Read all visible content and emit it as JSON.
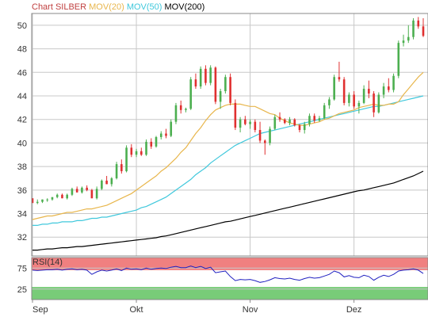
{
  "chart_data": {
    "type": "candlestick",
    "title_parts": [
      {
        "text": "Chart SILBER",
        "color": "#c04040"
      },
      {
        "text": "MOV(20)",
        "color": "#e8b64c"
      },
      {
        "text": "MOV(50)",
        "color": "#40c8dc"
      },
      {
        "text": "MOV(200)",
        "color": "#000000"
      }
    ],
    "y_ticks": [
      32,
      34,
      36,
      38,
      40,
      42,
      44,
      46,
      48,
      50
    ],
    "ylim": [
      30.4,
      51
    ],
    "x_labels": [
      {
        "label": "Sep",
        "index": 0
      },
      {
        "label": "Okt",
        "index": 21
      },
      {
        "label": "Nov",
        "index": 44
      },
      {
        "label": "Dez",
        "index": 65
      }
    ],
    "up_color": "#4caf50",
    "down_color": "#e03030",
    "candles": [
      [
        35.3,
        35.3,
        34.9,
        34.9
      ],
      [
        34.9,
        35.2,
        34.8,
        35.0
      ],
      [
        35.0,
        35.2,
        34.9,
        35.2
      ],
      [
        35.2,
        35.3,
        35.0,
        35.2
      ],
      [
        35.2,
        35.4,
        35.1,
        35.4
      ],
      [
        35.4,
        35.7,
        35.3,
        35.6
      ],
      [
        35.6,
        35.7,
        35.3,
        35.3
      ],
      [
        35.3,
        35.7,
        35.2,
        35.6
      ],
      [
        35.6,
        36.2,
        35.5,
        36.1
      ],
      [
        36.1,
        36.3,
        35.8,
        35.8
      ],
      [
        35.8,
        36.3,
        35.7,
        36.2
      ],
      [
        36.2,
        36.4,
        35.9,
        36.0
      ],
      [
        36.0,
        36.1,
        35.3,
        35.3
      ],
      [
        35.3,
        36.3,
        35.2,
        36.1
      ],
      [
        36.1,
        36.9,
        36.0,
        36.8
      ],
      [
        36.8,
        37.2,
        36.5,
        36.5
      ],
      [
        36.5,
        37.1,
        36.3,
        37.0
      ],
      [
        37.0,
        38.4,
        36.9,
        38.2
      ],
      [
        38.2,
        38.6,
        37.4,
        37.6
      ],
      [
        37.6,
        39.8,
        37.5,
        39.6
      ],
      [
        39.6,
        39.9,
        38.8,
        39.0
      ],
      [
        39.0,
        39.5,
        38.8,
        39.3
      ],
      [
        39.3,
        39.6,
        38.9,
        39.0
      ],
      [
        39.0,
        40.3,
        38.9,
        40.1
      ],
      [
        40.1,
        40.4,
        39.5,
        39.7
      ],
      [
        39.7,
        40.6,
        39.6,
        40.5
      ],
      [
        40.5,
        41.0,
        40.3,
        40.8
      ],
      [
        40.8,
        41.2,
        40.4,
        40.6
      ],
      [
        40.6,
        42.0,
        40.5,
        41.8
      ],
      [
        41.8,
        43.4,
        41.6,
        43.2
      ],
      [
        43.2,
        43.6,
        42.5,
        42.8
      ],
      [
        42.8,
        43.0,
        42.6,
        42.9
      ],
      [
        42.9,
        45.6,
        42.8,
        45.4
      ],
      [
        45.4,
        45.9,
        44.6,
        44.8
      ],
      [
        44.8,
        46.5,
        44.6,
        46.3
      ],
      [
        46.3,
        46.6,
        44.9,
        45.1
      ],
      [
        45.1,
        46.6,
        44.9,
        46.4
      ],
      [
        46.4,
        46.5,
        43.3,
        43.5
      ],
      [
        43.5,
        44.6,
        42.9,
        44.4
      ],
      [
        44.4,
        45.8,
        44.2,
        45.6
      ],
      [
        45.6,
        45.9,
        43.2,
        43.4
      ],
      [
        43.4,
        43.7,
        41.1,
        41.3
      ],
      [
        41.3,
        42.2,
        40.9,
        42.0
      ],
      [
        42.0,
        42.3,
        41.5,
        41.6
      ],
      [
        41.6,
        42.0,
        41.2,
        41.8
      ],
      [
        41.8,
        42.0,
        40.9,
        41.1
      ],
      [
        41.1,
        41.8,
        40.0,
        40.2
      ],
      [
        40.2,
        40.3,
        39.0,
        40.0
      ],
      [
        40.0,
        41.4,
        39.8,
        41.2
      ],
      [
        41.2,
        42.4,
        41.1,
        42.2
      ],
      [
        42.2,
        42.6,
        41.8,
        42.0
      ],
      [
        42.0,
        42.1,
        41.6,
        41.7
      ],
      [
        41.7,
        42.2,
        41.5,
        42.0
      ],
      [
        42.0,
        42.1,
        41.4,
        41.5
      ],
      [
        41.5,
        41.6,
        40.9,
        41.1
      ],
      [
        41.1,
        41.8,
        40.8,
        41.6
      ],
      [
        41.6,
        42.5,
        41.4,
        42.3
      ],
      [
        42.3,
        42.5,
        41.7,
        41.9
      ],
      [
        41.9,
        42.3,
        41.8,
        42.1
      ],
      [
        42.1,
        43.4,
        42.0,
        43.2
      ],
      [
        43.2,
        43.9,
        42.9,
        43.7
      ],
      [
        43.7,
        45.8,
        43.6,
        45.6
      ],
      [
        45.6,
        46.9,
        45.2,
        45.4
      ],
      [
        45.4,
        45.6,
        43.2,
        43.4
      ],
      [
        43.4,
        44.3,
        43.1,
        44.1
      ],
      [
        44.1,
        44.4,
        42.9,
        43.1
      ],
      [
        43.1,
        43.6,
        42.5,
        43.4
      ],
      [
        43.4,
        44.9,
        43.3,
        44.6
      ],
      [
        44.6,
        45.3,
        43.8,
        44.2
      ],
      [
        44.2,
        44.4,
        42.2,
        42.6
      ],
      [
        42.6,
        44.3,
        42.5,
        44.1
      ],
      [
        44.1,
        45.1,
        43.8,
        44.8
      ],
      [
        44.8,
        45.5,
        44.3,
        44.5
      ],
      [
        44.5,
        45.9,
        44.3,
        45.7
      ],
      [
        45.7,
        48.7,
        45.5,
        48.5
      ],
      [
        48.5,
        49.2,
        48.2,
        48.7
      ],
      [
        48.7,
        50.0,
        48.5,
        49.0
      ],
      [
        49.0,
        50.6,
        48.8,
        50.4
      ],
      [
        50.4,
        50.7,
        49.7,
        49.9
      ],
      [
        49.9,
        50.6,
        49.0,
        49.1
      ]
    ],
    "ma20": [
      33.5,
      33.6,
      33.7,
      33.8,
      33.8,
      33.9,
      34.0,
      34.1,
      34.1,
      34.2,
      34.3,
      34.4,
      34.4,
      34.5,
      34.6,
      34.7,
      34.9,
      35.1,
      35.3,
      35.5,
      35.7,
      36.0,
      36.3,
      36.6,
      36.9,
      37.2,
      37.6,
      37.9,
      38.3,
      38.7,
      39.2,
      39.6,
      40.2,
      40.8,
      41.3,
      41.9,
      42.4,
      42.8,
      43.0,
      43.2,
      43.3,
      43.3,
      43.3,
      43.2,
      43.1,
      43.1,
      42.9,
      42.7,
      42.5,
      42.4,
      42.1,
      41.9,
      41.7,
      41.6,
      41.5,
      41.5,
      41.6,
      41.7,
      41.8,
      42.0,
      42.1,
      42.3,
      42.5,
      42.6,
      42.7,
      42.8,
      43.0,
      43.1,
      43.2,
      43.3,
      43.2,
      43.2,
      43.3,
      43.3,
      43.5,
      44.1,
      44.6,
      45.1,
      45.6,
      46.0
    ],
    "ma50": [
      33.0,
      33.0,
      33.1,
      33.1,
      33.2,
      33.2,
      33.3,
      33.3,
      33.3,
      33.4,
      33.4,
      33.5,
      33.6,
      33.6,
      33.7,
      33.7,
      33.8,
      33.9,
      34.0,
      34.1,
      34.2,
      34.3,
      34.5,
      34.6,
      34.8,
      35.0,
      35.2,
      35.4,
      35.7,
      36.0,
      36.3,
      36.6,
      36.9,
      37.3,
      37.6,
      37.9,
      38.3,
      38.6,
      38.9,
      39.2,
      39.5,
      39.8,
      40.0,
      40.2,
      40.4,
      40.6,
      40.8,
      40.9,
      41.0,
      41.1,
      41.2,
      41.3,
      41.4,
      41.5,
      41.6,
      41.7,
      41.8,
      41.9,
      42.0,
      42.1,
      42.2,
      42.3,
      42.4,
      42.5,
      42.6,
      42.7,
      42.8,
      42.9,
      43.0,
      43.1,
      43.1,
      43.2,
      43.3,
      43.4,
      43.5,
      43.6,
      43.7,
      43.8,
      43.9,
      44.0
    ],
    "ma200": [
      30.9,
      30.9,
      30.95,
      31.0,
      31.0,
      31.05,
      31.1,
      31.1,
      31.15,
      31.2,
      31.2,
      31.25,
      31.3,
      31.35,
      31.4,
      31.45,
      31.5,
      31.55,
      31.6,
      31.65,
      31.7,
      31.75,
      31.8,
      31.85,
      31.9,
      31.95,
      32.05,
      32.1,
      32.2,
      32.3,
      32.4,
      32.5,
      32.6,
      32.7,
      32.8,
      32.9,
      33.0,
      33.1,
      33.2,
      33.3,
      33.35,
      33.45,
      33.55,
      33.65,
      33.75,
      33.85,
      33.95,
      34.05,
      34.15,
      34.25,
      34.35,
      34.45,
      34.55,
      34.65,
      34.75,
      34.85,
      34.95,
      35.05,
      35.15,
      35.25,
      35.35,
      35.45,
      35.55,
      35.65,
      35.75,
      35.85,
      35.95,
      36.0,
      36.1,
      36.2,
      36.3,
      36.4,
      36.5,
      36.6,
      36.75,
      36.9,
      37.05,
      37.2,
      37.4,
      37.6
    ],
    "rsi": {
      "label": "RSI(14)",
      "ylim": [
        0,
        100
      ],
      "ticks": [
        75,
        25
      ],
      "overbought": 70,
      "oversold": 30,
      "overbought_color": "#f08080",
      "oversold_color": "#78cc78",
      "line_color": "#2020c0",
      "values": [
        70,
        69,
        70,
        71,
        71,
        72,
        70,
        72,
        73,
        71,
        72,
        70,
        60,
        66,
        70,
        68,
        70,
        73,
        69,
        75,
        72,
        73,
        71,
        75,
        72,
        74,
        75,
        74,
        77,
        79,
        76,
        76,
        80,
        76,
        79,
        74,
        77,
        64,
        66,
        68,
        55,
        45,
        48,
        47,
        48,
        45,
        41,
        43,
        47,
        52,
        50,
        49,
        51,
        48,
        46,
        50,
        53,
        51,
        52,
        56,
        60,
        68,
        64,
        54,
        57,
        53,
        52,
        58,
        55,
        46,
        53,
        58,
        55,
        60,
        68,
        70,
        71,
        73,
        70,
        62
      ]
    }
  }
}
